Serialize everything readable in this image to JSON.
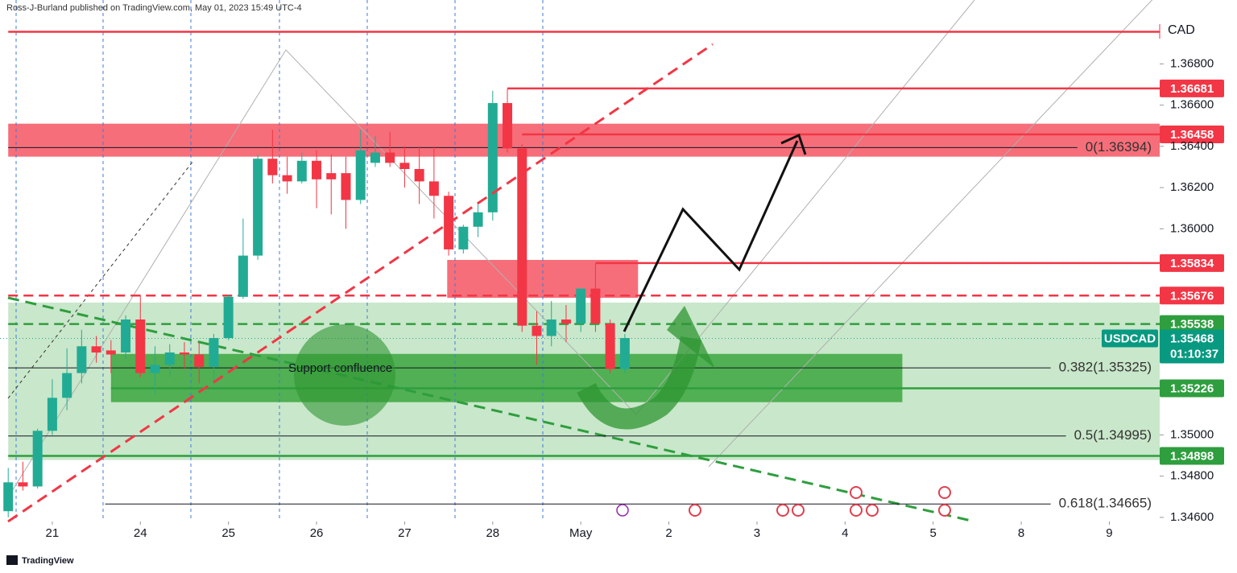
{
  "header": "Ross-J-Burland published on TradingView.com, May 01, 2023 15:49 UTC-4",
  "chart_data": {
    "type": "candlestick",
    "symbol": "USDCAD",
    "currency": "CAD",
    "countdown": "01:10:37",
    "last_price": {
      "value": 1.35468,
      "label": "1.35468"
    },
    "up_color": "#22ab94",
    "down_color": "#f23645",
    "x": [
      0,
      1,
      2,
      3,
      4,
      5,
      6,
      7,
      8,
      9,
      10,
      11,
      12,
      13,
      14,
      15,
      16,
      17,
      18,
      19,
      20,
      21,
      22,
      23,
      24,
      25,
      26,
      27,
      28,
      29,
      30,
      31,
      32,
      33,
      34,
      35,
      36,
      37,
      38,
      39,
      40,
      41,
      42
    ],
    "open": [
      1.3463,
      1.3477,
      1.3475,
      1.3502,
      1.3518,
      1.353,
      1.3543,
      1.3541,
      1.354,
      1.3556,
      1.353,
      1.3534,
      1.354,
      1.3539,
      1.3533,
      1.3547,
      1.3567,
      1.3587,
      1.3634,
      1.3626,
      1.3623,
      1.3633,
      1.3627,
      1.3627,
      1.3614,
      1.3632,
      1.3637,
      1.3632,
      1.3629,
      1.3623,
      1.3616,
      1.359,
      1.3601,
      1.3608,
      1.3661,
      1.3639,
      1.3553,
      1.3548,
      1.3556,
      1.3554,
      1.3571,
      1.3554,
      1.3532
    ],
    "high": [
      1.3484,
      1.3487,
      1.3503,
      1.3527,
      1.3542,
      1.3551,
      1.3548,
      1.3546,
      1.3558,
      1.3568,
      1.3543,
      1.3544,
      1.3545,
      1.3545,
      1.3549,
      1.3568,
      1.3605,
      1.3636,
      1.3648,
      1.3635,
      1.3637,
      1.3638,
      1.3636,
      1.3635,
      1.3648,
      1.3645,
      1.3647,
      1.364,
      1.364,
      1.364,
      1.3618,
      1.3602,
      1.3612,
      1.3667,
      1.3668,
      1.3641,
      1.356,
      1.3565,
      1.3563,
      1.3571,
      1.3583,
      1.3556,
      1.3549
    ],
    "low": [
      1.346,
      1.3473,
      1.3474,
      1.35,
      1.3512,
      1.3525,
      1.3535,
      1.353,
      1.3537,
      1.3528,
      1.352,
      1.3528,
      1.3532,
      1.3525,
      1.3525,
      1.3546,
      1.3566,
      1.3585,
      1.3622,
      1.3617,
      1.3622,
      1.361,
      1.3607,
      1.36,
      1.3612,
      1.363,
      1.363,
      1.362,
      1.3612,
      1.3605,
      1.3587,
      1.3588,
      1.3596,
      1.3604,
      1.3637,
      1.355,
      1.3534,
      1.3543,
      1.3545,
      1.355,
      1.355,
      1.353,
      1.353
    ],
    "close": [
      1.3477,
      1.3475,
      1.3502,
      1.3518,
      1.353,
      1.3543,
      1.354,
      1.3539,
      1.3556,
      1.353,
      1.3534,
      1.354,
      1.3539,
      1.3533,
      1.3547,
      1.3567,
      1.3587,
      1.3634,
      1.3626,
      1.3623,
      1.3633,
      1.3624,
      1.3624,
      1.3614,
      1.3638,
      1.3637,
      1.3632,
      1.3629,
      1.3623,
      1.3616,
      1.359,
      1.3601,
      1.3608,
      1.3661,
      1.3639,
      1.3553,
      1.3548,
      1.3556,
      1.3554,
      1.3571,
      1.3554,
      1.3532,
      1.3547
    ],
    "xlim": [
      -0.56,
      78.43
    ],
    "xticks": [
      {
        "value": 3,
        "label": "21"
      },
      {
        "value": 9,
        "label": "24"
      },
      {
        "value": 15,
        "label": "25"
      },
      {
        "value": 21,
        "label": "26"
      },
      {
        "value": 27,
        "label": "27"
      },
      {
        "value": 33,
        "label": "28"
      },
      {
        "value": 39,
        "label": "May"
      },
      {
        "value": 45,
        "label": "2"
      },
      {
        "value": 51,
        "label": "3"
      },
      {
        "value": 57,
        "label": "4"
      },
      {
        "value": 63,
        "label": "5"
      },
      {
        "value": 69,
        "label": "8"
      },
      {
        "value": 75,
        "label": "9"
      }
    ],
    "ylim": [
      1.3458,
      1.3711
    ],
    "yticks": [
      {
        "value": 1.368,
        "label": "1.36800"
      },
      {
        "value": 1.366,
        "label": "1.36600"
      },
      {
        "value": 1.364,
        "label": "1.36400"
      },
      {
        "value": 1.362,
        "label": "1.36200"
      },
      {
        "value": 1.36,
        "label": "1.36000"
      },
      {
        "value": 1.35,
        "label": "1.35000"
      },
      {
        "value": 1.348,
        "label": "1.34800"
      },
      {
        "value": 1.346,
        "label": "1.34600"
      }
    ],
    "zones": [
      {
        "x_range": [
          0,
          78.43
        ],
        "y_range": [
          1.3635,
          1.3651
        ],
        "color": "rgba(242,54,69,0.72)"
      },
      {
        "x_range": [
          29.9,
          42.9
        ],
        "y_range": [
          1.35665,
          1.35849
        ],
        "color": "rgba(242,54,69,0.72)"
      },
      {
        "x_range": [
          0,
          78.43
        ],
        "y_range": [
          1.34878,
          1.35642
        ],
        "color": "rgba(76,175,80,0.3)"
      },
      {
        "x_range": [
          7,
          60.9
        ],
        "y_range": [
          1.35159,
          1.35393
        ],
        "color": "rgba(46,160,50,0.78)"
      }
    ],
    "price_levels": [
      {
        "value": 1.36956,
        "from": 0,
        "color": "#f23645",
        "style": "solid"
      },
      {
        "value": 1.36681,
        "label": "1.36681",
        "from": 34,
        "color": "#f23645",
        "style": "solid"
      },
      {
        "value": 1.36458,
        "label": "1.36458",
        "from": 35,
        "color": "#f23645",
        "style": "solid"
      },
      {
        "value": 1.35834,
        "label": "1.35834",
        "from": 40,
        "color": "#f23645",
        "style": "solid"
      },
      {
        "value": 1.35676,
        "label": "1.35676",
        "from": 0,
        "color": "#f23645",
        "style": "dashed"
      },
      {
        "value": 1.35538,
        "label": "1.35538",
        "from": 0,
        "color": "#2e9e3e",
        "style": "dashed"
      },
      {
        "value": 1.35226,
        "label": "1.35226",
        "from": 7,
        "color": "#2e9e3e",
        "style": "solid"
      },
      {
        "value": 1.34898,
        "label": "1.34898",
        "from": 0,
        "color": "#2e9e3e",
        "style": "solid"
      }
    ],
    "fib_levels": [
      {
        "value": 1.36394,
        "label": "0(1.36394)",
        "from": 0
      },
      {
        "value": 1.35325,
        "label": "0.382(1.35325)",
        "from": 0
      },
      {
        "value": 1.34995,
        "label": "0.5(1.34995)",
        "from": 0
      },
      {
        "value": 1.34665,
        "label": "0.618(1.34665)",
        "from": 6.6
      }
    ],
    "annotation": "Support confluence",
    "watermark": "TradingView"
  }
}
